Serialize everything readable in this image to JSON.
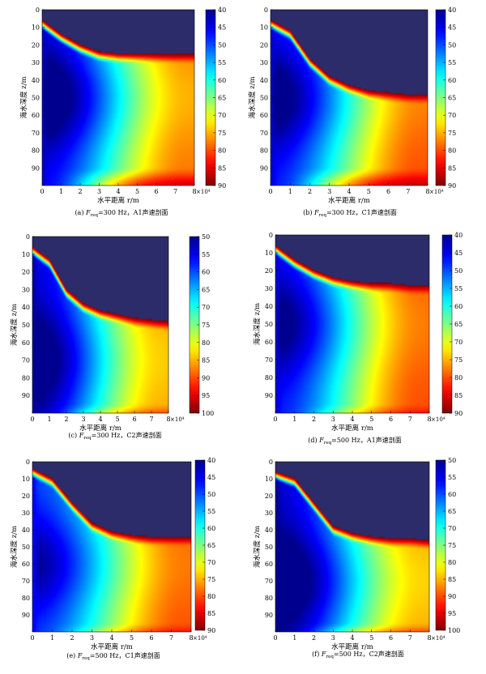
{
  "colormap": [
    "#00008f",
    "#0000ff",
    "#00ffff",
    "#ffff00",
    "#ff0000",
    "#800000"
  ],
  "background": "#2c2c6b",
  "chart_data": [
    {
      "type": "heatmap",
      "id": "a",
      "caption": "(a) F_req=300 Hz，A1声速剖面",
      "caption_prefix": "(a) ",
      "caption_suffix": "=300 Hz，A1声速剖面",
      "xlabel": "水平距离 r/m",
      "ylabel": "海水深度 z/m",
      "x_range": [
        0,
        8
      ],
      "x_ticks": [
        "0",
        "1",
        "2",
        "3",
        "4",
        "5",
        "6",
        "7",
        "8"
      ],
      "x_multiplier": "×10⁴",
      "y_range": [
        0,
        100
      ],
      "y_ticks": [
        "0",
        "10",
        "20",
        "30",
        "40",
        "50",
        "60",
        "70",
        "80",
        "90"
      ],
      "colorbar_range": [
        40,
        90
      ],
      "colorbar_ticks": [
        "40",
        "45",
        "50",
        "55",
        "60",
        "65",
        "70",
        "75",
        "80",
        "85",
        "90"
      ],
      "field": {
        "boundary_depth": [
          8,
          16,
          22,
          26,
          27,
          27,
          27,
          27,
          27
        ],
        "shadow_depth": 95,
        "core_depth": 50,
        "core_level": 58,
        "near_level": 47,
        "far_level": 78
      }
    },
    {
      "type": "heatmap",
      "id": "b",
      "caption": "(b) F_req=300 Hz，C1声速剖面",
      "caption_prefix": "(b) ",
      "caption_suffix": "=300 Hz，C1声速剖面",
      "xlabel": "水平距离 r/m",
      "ylabel": "海水深度 z/m",
      "x_range": [
        0,
        8
      ],
      "x_ticks": [
        "0",
        "1",
        "2",
        "3",
        "4",
        "5",
        "6",
        "7",
        "8"
      ],
      "x_multiplier": "×10⁴",
      "y_range": [
        0,
        100
      ],
      "y_ticks": [
        "0",
        "10",
        "20",
        "30",
        "40",
        "50",
        "60",
        "70",
        "80",
        "90"
      ],
      "colorbar_range": [
        40,
        90
      ],
      "colorbar_ticks": [
        "40",
        "45",
        "50",
        "55",
        "60",
        "65",
        "70",
        "75",
        "80",
        "85",
        "90"
      ],
      "field": {
        "boundary_depth": [
          8,
          14,
          30,
          40,
          45,
          48,
          49,
          50,
          50
        ],
        "shadow_depth": 95,
        "core_depth": 50,
        "core_level": 62,
        "near_level": 48,
        "far_level": 80
      }
    },
    {
      "type": "heatmap",
      "id": "c",
      "caption": "(c) F_req=300 Hz，C2声速剖面",
      "caption_prefix": "(c) ",
      "caption_suffix": "=300 Hz，C2声速剖面",
      "xlabel": "水平距离 r/m",
      "ylabel": "海水深度 z/m",
      "x_range": [
        0,
        8
      ],
      "x_ticks": [
        "0",
        "1",
        "2",
        "3",
        "4",
        "5",
        "6",
        "7",
        "8"
      ],
      "x_multiplier": "×10⁴",
      "y_range": [
        0,
        100
      ],
      "y_ticks": [
        "0",
        "10",
        "20",
        "30",
        "40",
        "50",
        "60",
        "70",
        "80",
        "90"
      ],
      "colorbar_range": [
        50,
        100
      ],
      "colorbar_ticks": [
        "50",
        "55",
        "60",
        "65",
        "70",
        "75",
        "80",
        "85",
        "90",
        "95",
        "100"
      ],
      "field": {
        "boundary_depth": [
          8,
          15,
          32,
          40,
          44,
          46,
          48,
          49,
          50
        ],
        "shadow_depth": 100,
        "core_depth": 70,
        "core_level": 70,
        "near_level": 55,
        "far_level": 86
      }
    },
    {
      "type": "heatmap",
      "id": "d",
      "caption": "(d) F_req=500 Hz，A1声速剖面",
      "caption_prefix": "(d) ",
      "caption_suffix": "=500 Hz，A1声速剖面",
      "xlabel": "水平距离 r/m",
      "ylabel": "海水深度 z/m",
      "x_range": [
        0,
        8
      ],
      "x_ticks": [
        "0",
        "1",
        "2",
        "3",
        "4",
        "5",
        "6",
        "7",
        "8"
      ],
      "x_multiplier": "×10⁴",
      "y_range": [
        0,
        100
      ],
      "y_ticks": [
        "0",
        "10",
        "20",
        "30",
        "40",
        "50",
        "60",
        "70",
        "80",
        "90"
      ],
      "colorbar_range": [
        40,
        90
      ],
      "colorbar_ticks": [
        "40",
        "45",
        "50",
        "55",
        "60",
        "65",
        "70",
        "75",
        "80",
        "85",
        "90"
      ],
      "field": {
        "boundary_depth": [
          8,
          16,
          22,
          26,
          28,
          29,
          29,
          30,
          30
        ],
        "shadow_depth": 100,
        "core_depth": 50,
        "core_level": 64,
        "near_level": 48,
        "far_level": 80
      }
    },
    {
      "type": "heatmap",
      "id": "e",
      "caption": "(e) F_req=500 Hz，C1声速剖面",
      "caption_prefix": "(e) ",
      "caption_suffix": "=500 Hz，C1声速剖面",
      "xlabel": "水平距离 r/m",
      "ylabel": "海水深度 z/m",
      "x_range": [
        0,
        8
      ],
      "x_ticks": [
        "0",
        "1",
        "2",
        "3",
        "4",
        "5",
        "6",
        "7",
        "8"
      ],
      "x_multiplier": "×10⁴",
      "y_range": [
        0,
        100
      ],
      "y_ticks": [
        "0",
        "10",
        "20",
        "30",
        "40",
        "50",
        "60",
        "70",
        "80",
        "90"
      ],
      "colorbar_range": [
        40,
        90
      ],
      "colorbar_ticks": [
        "40",
        "45",
        "50",
        "55",
        "60",
        "65",
        "70",
        "75",
        "80",
        "85",
        "90"
      ],
      "field": {
        "boundary_depth": [
          6,
          12,
          26,
          38,
          43,
          45,
          46,
          46,
          46
        ],
        "shadow_depth": 100,
        "core_depth": 60,
        "core_level": 65,
        "near_level": 50,
        "far_level": 80
      }
    },
    {
      "type": "heatmap",
      "id": "f",
      "caption": "(f) F_req=500 Hz，C2声速剖面",
      "caption_prefix": "(f) ",
      "caption_suffix": "=500 Hz，C2声速剖面",
      "xlabel": "水平距离 r/m",
      "ylabel": "海水深度 z/m",
      "x_range": [
        0,
        8
      ],
      "x_ticks": [
        "0",
        "1",
        "2",
        "3",
        "4",
        "5",
        "6",
        "7",
        "8"
      ],
      "x_multiplier": "×10⁴",
      "y_range": [
        0,
        100
      ],
      "y_ticks": [
        "0",
        "10",
        "20",
        "30",
        "40",
        "50",
        "60",
        "70",
        "80",
        "90"
      ],
      "colorbar_range": [
        50,
        100
      ],
      "colorbar_ticks": [
        "50",
        "55",
        "60",
        "65",
        "70",
        "75",
        "80",
        "85",
        "90",
        "95",
        "100"
      ],
      "field": {
        "boundary_depth": [
          8,
          12,
          26,
          40,
          44,
          46,
          47,
          47,
          48
        ],
        "shadow_depth": 100,
        "core_depth": 70,
        "core_level": 68,
        "near_level": 54,
        "far_level": 86
      }
    }
  ]
}
